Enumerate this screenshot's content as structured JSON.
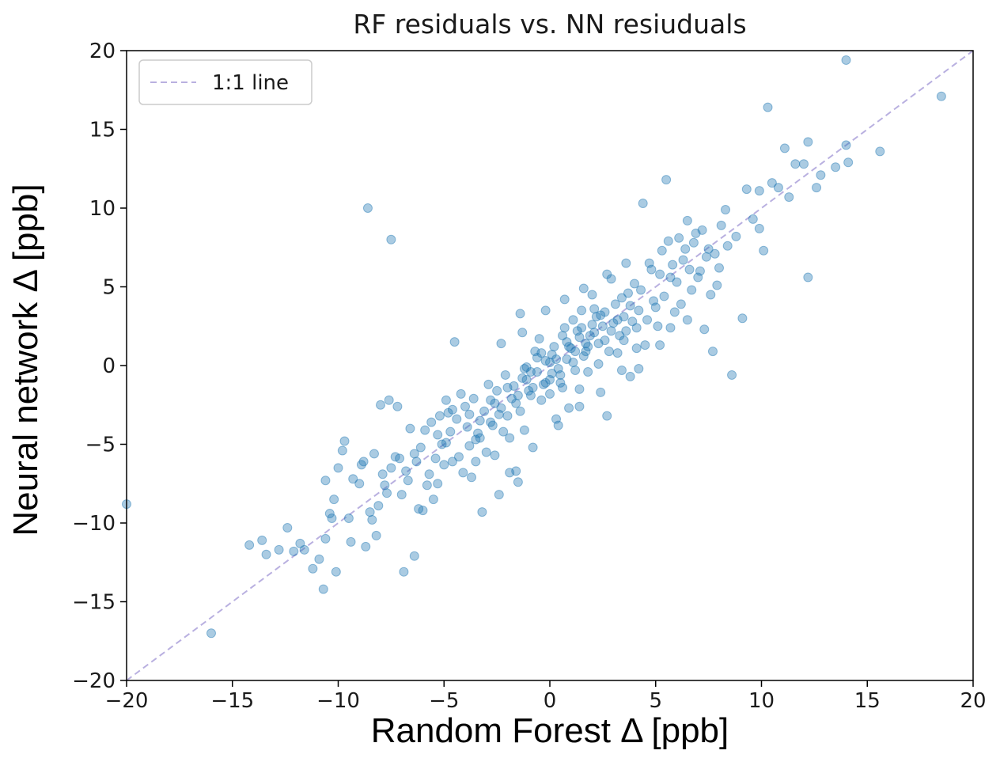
{
  "chart_data": {
    "type": "scatter",
    "title": "RF residuals vs. NN resiuduals",
    "xlabel": "Random Forest Δ [ppb]",
    "ylabel": "Neural network Δ [ppb]",
    "xlim": [
      -20,
      20
    ],
    "ylim": [
      -20,
      20
    ],
    "xticks": [
      -20,
      -15,
      -10,
      -5,
      0,
      5,
      10,
      15,
      20
    ],
    "yticks": [
      -20,
      -15,
      -10,
      -5,
      0,
      5,
      10,
      15,
      20
    ],
    "xtick_labels": [
      "−20",
      "−15",
      "−10",
      "−5",
      "0",
      "5",
      "10",
      "15",
      "20"
    ],
    "ytick_labels": [
      "−20",
      "−15",
      "−10",
      "−5",
      "0",
      "5",
      "10",
      "15",
      "20"
    ],
    "grid": false,
    "legend": {
      "placement": "top-left",
      "entries": [
        "1:1 line"
      ]
    },
    "colors": {
      "points": "#1f77b4",
      "reference_line": "#b9b0e0"
    },
    "series": [
      {
        "points": [
          [
            -20,
            -8.8
          ],
          [
            -16,
            -17
          ],
          [
            -14.2,
            -11.4
          ],
          [
            -13.6,
            -11.1
          ],
          [
            -13.4,
            -12
          ],
          [
            -12.8,
            -11.7
          ],
          [
            -12.4,
            -10.3
          ],
          [
            -12.1,
            -11.8
          ],
          [
            -11.8,
            -11.3
          ],
          [
            -11.6,
            -11.7
          ],
          [
            -11.2,
            -12.9
          ],
          [
            -10.9,
            -12.3
          ],
          [
            -10.7,
            -14.2
          ],
          [
            -10.6,
            -11
          ],
          [
            -10.6,
            -7.3
          ],
          [
            -10.4,
            -9.4
          ],
          [
            -10.3,
            -9.7
          ],
          [
            -10.2,
            -8.5
          ],
          [
            -10.1,
            -13.1
          ],
          [
            -10,
            -6.5
          ],
          [
            -9.8,
            -5.4
          ],
          [
            -9.7,
            -4.8
          ],
          [
            -9.4,
            -11.2
          ],
          [
            -9,
            -7.5
          ],
          [
            -8.7,
            -11.5
          ],
          [
            -8.5,
            -9.3
          ],
          [
            -8.2,
            -10.8
          ],
          [
            -8.9,
            -6.3
          ],
          [
            -8.3,
            -5.6
          ],
          [
            -8.1,
            -8.9
          ],
          [
            -8.6,
            10
          ],
          [
            -7.5,
            8
          ],
          [
            -8,
            -2.5
          ],
          [
            -7.6,
            -2.2
          ],
          [
            -7.2,
            -2.6
          ],
          [
            -7.8,
            -7.6
          ],
          [
            -7.5,
            -6.5
          ],
          [
            -7.3,
            -5.8
          ],
          [
            -7,
            -8.2
          ],
          [
            -6.8,
            -6.7
          ],
          [
            -6.6,
            -4
          ],
          [
            -6.4,
            -5.6
          ],
          [
            -6.9,
            -13.1
          ],
          [
            -6.4,
            -12.1
          ],
          [
            -6,
            -9.2
          ],
          [
            -5.8,
            -7.6
          ],
          [
            -5.5,
            -8.5
          ],
          [
            -5.3,
            -4.4
          ],
          [
            -5.1,
            -5
          ],
          [
            -5,
            -6.3
          ],
          [
            -4.8,
            -3
          ],
          [
            -4.5,
            1.5
          ],
          [
            -4.3,
            -5.8
          ],
          [
            -4.1,
            -6.8
          ],
          [
            -3.9,
            -3.9
          ],
          [
            -3.7,
            -7.1
          ],
          [
            -3.5,
            -4.7
          ],
          [
            -3.3,
            -3.5
          ],
          [
            -3.2,
            -9.3
          ],
          [
            -3,
            -5.5
          ],
          [
            -2.8,
            -3.6
          ],
          [
            -2.6,
            -2.4
          ],
          [
            -2.4,
            -8.2
          ],
          [
            -2.2,
            -4.2
          ],
          [
            -2,
            -3.2
          ],
          [
            -1.8,
            -2.1
          ],
          [
            -1.6,
            -6.7
          ],
          [
            -1.5,
            -7.4
          ],
          [
            -1.3,
            2.1
          ],
          [
            -1.1,
            -0.9
          ],
          [
            -0.9,
            -0.4
          ],
          [
            -0.8,
            -5.2
          ],
          [
            -0.6,
            0.5
          ],
          [
            -0.5,
            1.7
          ],
          [
            -0.4,
            -2.2
          ],
          [
            -0.2,
            0.3
          ],
          [
            0,
            -1.8
          ],
          [
            0.1,
            -0.5
          ],
          [
            0.2,
            1.2
          ],
          [
            0.3,
            -3.4
          ],
          [
            0.5,
            -1.1
          ],
          [
            0.6,
            1.9
          ],
          [
            0.8,
            0.4
          ],
          [
            0.9,
            -2.7
          ],
          [
            1.1,
            2.9
          ],
          [
            1.2,
            0.9
          ],
          [
            1.4,
            -1.5
          ],
          [
            1.5,
            3.5
          ],
          [
            1.7,
            1.4
          ],
          [
            1.8,
            -0.4
          ],
          [
            2,
            4.5
          ],
          [
            2.1,
            2.1
          ],
          [
            2.3,
            0.1
          ],
          [
            2.4,
            3.2
          ],
          [
            2.6,
            1.6
          ],
          [
            2.7,
            -3.2
          ],
          [
            2.9,
            5.5
          ],
          [
            3,
            2.7
          ],
          [
            3.2,
            0.8
          ],
          [
            3.4,
            4.3
          ],
          [
            3.6,
            2.2
          ],
          [
            3.8,
            -0.7
          ],
          [
            4,
            5.2
          ],
          [
            4.2,
            3.5
          ],
          [
            4.4,
            10.3
          ],
          [
            4.5,
            1.3
          ],
          [
            4.7,
            6.5
          ],
          [
            4.9,
            4.1
          ],
          [
            5.1,
            2.5
          ],
          [
            5.3,
            7.3
          ],
          [
            5.5,
            11.8
          ],
          [
            5.7,
            5.6
          ],
          [
            5.9,
            3.4
          ],
          [
            6.1,
            8.1
          ],
          [
            6.3,
            6.7
          ],
          [
            6.5,
            9.2
          ],
          [
            6.7,
            4.8
          ],
          [
            6.9,
            8.4
          ],
          [
            7.1,
            6
          ],
          [
            7.3,
            2.3
          ],
          [
            7.5,
            7.4
          ],
          [
            7.7,
            0.9
          ],
          [
            7.9,
            5.1
          ],
          [
            8.1,
            8.9
          ],
          [
            8.4,
            7.6
          ],
          [
            8.6,
            -0.6
          ],
          [
            8.8,
            8.2
          ],
          [
            9.1,
            3
          ],
          [
            9.3,
            11.2
          ],
          [
            9.6,
            9.3
          ],
          [
            9.9,
            8.7
          ],
          [
            10.1,
            7.3
          ],
          [
            10.3,
            16.4
          ],
          [
            10.5,
            11.6
          ],
          [
            10.8,
            11.3
          ],
          [
            11.1,
            13.8
          ],
          [
            11.3,
            10.7
          ],
          [
            11.6,
            12.8
          ],
          [
            12,
            12.8
          ],
          [
            12.2,
            14.2
          ],
          [
            12.2,
            5.6
          ],
          [
            12.6,
            11.3
          ],
          [
            12.8,
            12.1
          ],
          [
            13.5,
            12.6
          ],
          [
            14,
            14
          ],
          [
            14.1,
            12.9
          ],
          [
            14,
            19.4
          ],
          [
            15.6,
            13.6
          ],
          [
            18.5,
            17.1
          ],
          [
            9.9,
            11.1
          ],
          [
            -9.5,
            -9.7
          ],
          [
            -9.3,
            -7.2
          ],
          [
            -8.8,
            -6.1
          ],
          [
            -8.4,
            -9.8
          ],
          [
            -7.9,
            -6.9
          ],
          [
            -7.7,
            -8.1
          ],
          [
            -7.1,
            -5.9
          ],
          [
            -6.7,
            -7.3
          ],
          [
            -6.3,
            -6.1
          ],
          [
            -6.1,
            -5.2
          ],
          [
            -5.7,
            -6.9
          ],
          [
            -5.6,
            -3.6
          ],
          [
            -5.4,
            -5.9
          ],
          [
            -5.2,
            -3.2
          ],
          [
            -4.9,
            -4.9
          ],
          [
            -4.7,
            -4.2
          ],
          [
            -4.6,
            -2.8
          ],
          [
            -4.4,
            -3.4
          ],
          [
            -4.2,
            -1.8
          ],
          [
            -4,
            -2.6
          ],
          [
            -3.8,
            -5.1
          ],
          [
            -3.6,
            -2.1
          ],
          [
            -3.4,
            -4.3
          ],
          [
            -3.1,
            -2.9
          ],
          [
            -2.9,
            -1.2
          ],
          [
            -2.7,
            -3.8
          ],
          [
            -2.5,
            -1.6
          ],
          [
            -2.3,
            -2.7
          ],
          [
            -2.1,
            -0.6
          ],
          [
            -1.9,
            -4.6
          ],
          [
            -1.7,
            -1.3
          ],
          [
            -1.4,
            -2.9
          ],
          [
            -1.2,
            -0.2
          ],
          [
            -1,
            -1.6
          ],
          [
            -0.7,
            0.9
          ],
          [
            -0.3,
            -1.2
          ],
          [
            0,
            0.2
          ],
          [
            0.4,
            -0.2
          ],
          [
            0.7,
            2.4
          ],
          [
            1,
            1.1
          ],
          [
            1.3,
            2.2
          ],
          [
            1.6,
            0.6
          ],
          [
            1.9,
            1.9
          ],
          [
            2.2,
            3.1
          ],
          [
            2.5,
            2.5
          ],
          [
            2.8,
            0.9
          ],
          [
            3.1,
            3.9
          ],
          [
            3.3,
            1.9
          ],
          [
            3.5,
            3.1
          ],
          [
            3.7,
            4.6
          ],
          [
            3.9,
            2.8
          ],
          [
            4.1,
            1.1
          ],
          [
            4.3,
            4.8
          ],
          [
            4.6,
            2.9
          ],
          [
            4.8,
            6.1
          ],
          [
            5,
            3.7
          ],
          [
            5.2,
            5.8
          ],
          [
            5.4,
            4.4
          ],
          [
            5.6,
            7.9
          ],
          [
            5.8,
            6.4
          ],
          [
            6,
            5.3
          ],
          [
            6.2,
            3.9
          ],
          [
            6.4,
            7.4
          ],
          [
            6.6,
            6.1
          ],
          [
            6.8,
            7.8
          ],
          [
            7,
            5.6
          ],
          [
            7.2,
            8.6
          ],
          [
            7.4,
            6.9
          ],
          [
            7.6,
            4.5
          ],
          [
            7.8,
            7.1
          ],
          [
            8,
            6.2
          ],
          [
            8.3,
            9.9
          ],
          [
            -3.8,
            -3.1
          ],
          [
            -3.3,
            -4.6
          ],
          [
            -2.8,
            -2.2
          ],
          [
            -2.4,
            -3.1
          ],
          [
            -2,
            -1.4
          ],
          [
            -1.6,
            -2.4
          ],
          [
            -1.3,
            -0.8
          ],
          [
            -0.9,
            -1.9
          ],
          [
            -0.6,
            -0.4
          ],
          [
            -0.2,
            -1.1
          ],
          [
            0.1,
            0.7
          ],
          [
            0.5,
            -0.6
          ],
          [
            0.8,
            1.5
          ],
          [
            1.1,
            0.2
          ],
          [
            1.4,
            1.8
          ],
          [
            1.7,
            0.9
          ],
          [
            2,
            2.6
          ],
          [
            2.3,
            1.4
          ],
          [
            2.6,
            3.4
          ],
          [
            2.9,
            2.2
          ],
          [
            3.2,
            2.9
          ],
          [
            3.5,
            1.6
          ],
          [
            3.8,
            3.8
          ],
          [
            4.1,
            2.4
          ],
          [
            -1.5,
            -1.9
          ],
          [
            -1.1,
            -0.1
          ],
          [
            -0.8,
            -1.4
          ],
          [
            -0.4,
            0.8
          ],
          [
            0,
            -0.9
          ],
          [
            0.3,
            0.4
          ],
          [
            0.6,
            -1.4
          ],
          [
            0.9,
            1.2
          ],
          [
            1.2,
            -0.3
          ],
          [
            1.5,
            2.4
          ],
          [
            1.8,
            1.2
          ],
          [
            2.1,
            3.6
          ],
          [
            -6.2,
            -9.1
          ],
          [
            -5.9,
            -4.1
          ],
          [
            -5.3,
            -7.5
          ],
          [
            -4.9,
            -2.2
          ],
          [
            -4.6,
            -6.1
          ],
          [
            -3.5,
            -6.1
          ],
          [
            -2.6,
            -5.7
          ],
          [
            -1.9,
            -6.8
          ],
          [
            -1.2,
            -4.1
          ],
          [
            0.4,
            -3.8
          ],
          [
            1.4,
            -2.6
          ],
          [
            2.4,
            -1.7
          ],
          [
            3.4,
            -0.3
          ],
          [
            4.2,
            -0.2
          ],
          [
            5.2,
            1.3
          ],
          [
            5.7,
            2.4
          ],
          [
            6.5,
            2.9
          ],
          [
            3.6,
            6.5
          ],
          [
            2.7,
            5.8
          ],
          [
            1.6,
            4.9
          ],
          [
            0.7,
            4.2
          ],
          [
            -0.2,
            3.5
          ],
          [
            -1.4,
            3.3
          ],
          [
            -2.3,
            1.4
          ]
        ]
      },
      {
        "name": "1:1 line",
        "type": "line",
        "style": "dashed",
        "points": [
          [
            -20,
            -20
          ],
          [
            20,
            20
          ]
        ]
      }
    ]
  }
}
